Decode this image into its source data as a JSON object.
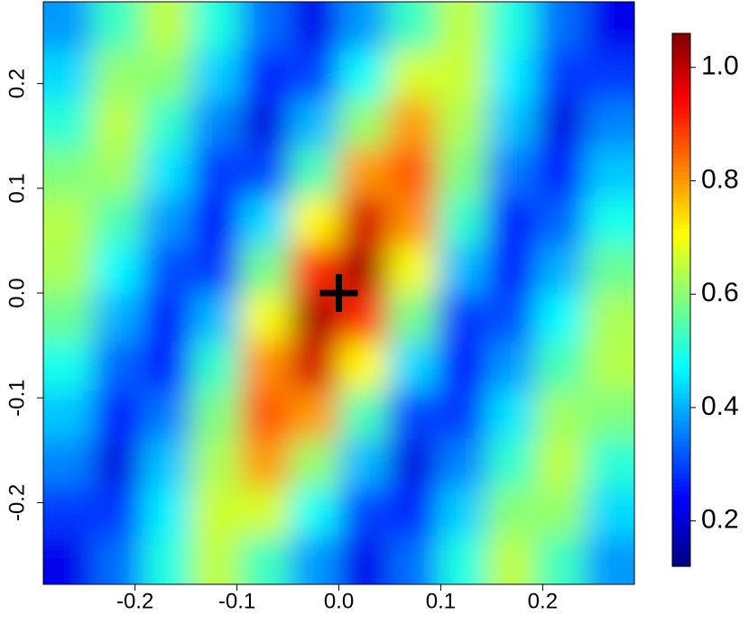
{
  "chart_data": {
    "type": "heatmap",
    "x": [
      -0.266,
      -0.217,
      -0.169,
      -0.121,
      -0.072,
      -0.024,
      0.024,
      0.072,
      0.121,
      0.169,
      0.217,
      0.266
    ],
    "y": [
      -0.255,
      -0.208,
      -0.162,
      -0.116,
      -0.069,
      -0.023,
      0.023,
      0.069,
      0.116,
      0.162,
      0.208,
      0.255
    ],
    "z": [
      [
        0.22,
        0.34,
        0.5,
        0.65,
        0.53,
        0.38,
        0.22,
        0.34,
        0.5,
        0.65,
        0.53,
        0.38
      ],
      [
        0.29,
        0.29,
        0.46,
        0.66,
        0.67,
        0.48,
        0.3,
        0.27,
        0.43,
        0.6,
        0.61,
        0.44
      ],
      [
        0.36,
        0.21,
        0.42,
        0.63,
        0.8,
        0.61,
        0.41,
        0.21,
        0.36,
        0.52,
        0.65,
        0.51
      ],
      [
        0.42,
        0.26,
        0.35,
        0.59,
        0.86,
        0.8,
        0.54,
        0.3,
        0.29,
        0.45,
        0.62,
        0.59
      ],
      [
        0.49,
        0.33,
        0.26,
        0.52,
        0.81,
        0.98,
        0.71,
        0.44,
        0.24,
        0.38,
        0.54,
        0.64
      ],
      [
        0.57,
        0.4,
        0.25,
        0.41,
        0.7,
        1.02,
        0.9,
        0.58,
        0.29,
        0.31,
        0.47,
        0.63
      ],
      [
        0.63,
        0.47,
        0.31,
        0.29,
        0.58,
        0.9,
        1.02,
        0.7,
        0.41,
        0.25,
        0.4,
        0.57
      ],
      [
        0.64,
        0.54,
        0.38,
        0.24,
        0.44,
        0.71,
        0.98,
        0.81,
        0.52,
        0.26,
        0.33,
        0.49
      ],
      [
        0.59,
        0.62,
        0.45,
        0.29,
        0.3,
        0.54,
        0.8,
        0.86,
        0.59,
        0.35,
        0.26,
        0.42
      ],
      [
        0.51,
        0.65,
        0.52,
        0.36,
        0.21,
        0.41,
        0.61,
        0.8,
        0.63,
        0.42,
        0.21,
        0.36
      ],
      [
        0.44,
        0.61,
        0.6,
        0.43,
        0.27,
        0.3,
        0.48,
        0.67,
        0.66,
        0.46,
        0.29,
        0.29
      ],
      [
        0.38,
        0.53,
        0.65,
        0.5,
        0.34,
        0.22,
        0.38,
        0.53,
        0.65,
        0.5,
        0.34,
        0.22
      ]
    ],
    "xlim": [
      -0.29,
      0.29
    ],
    "ylim": [
      -0.278,
      0.278
    ],
    "xticks": [
      -0.2,
      -0.1,
      {
        "value": 0,
        "label": "0.0"
      },
      0.1,
      0.2
    ],
    "yticks": [
      -0.2,
      -0.1,
      {
        "value": 0,
        "label": "0.0"
      },
      0.1,
      0.2
    ],
    "zlim": [
      0.12,
      1.06
    ],
    "zticks": [
      0.2,
      0.4,
      0.6,
      0.8,
      {
        "value": 1,
        "label": "1.0"
      }
    ],
    "colormap": [
      "#00007F",
      "#0000FF",
      "#007FFF",
      "#00FFFF",
      "#7FFF7F",
      "#FFFF00",
      "#FF7F00",
      "#FF0000",
      "#7F0000"
    ],
    "marker": {
      "x": 0,
      "y": 0,
      "color": "#000000"
    }
  }
}
